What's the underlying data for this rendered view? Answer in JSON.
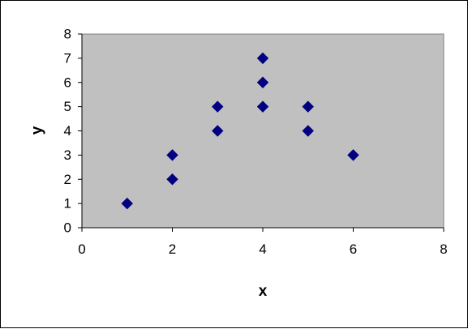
{
  "chart_data": {
    "type": "scatter",
    "title": "",
    "xlabel": "x",
    "ylabel": "y",
    "xlim": [
      0,
      8
    ],
    "ylim": [
      0,
      8
    ],
    "xticks": [
      0,
      2,
      4,
      6,
      8
    ],
    "yticks": [
      0,
      1,
      2,
      3,
      4,
      5,
      6,
      7,
      8
    ],
    "grid": false,
    "legend": "none",
    "series": [
      {
        "marker": "diamond",
        "color": "#000080",
        "points": [
          {
            "x": 1,
            "y": 1
          },
          {
            "x": 2,
            "y": 2
          },
          {
            "x": 2,
            "y": 3
          },
          {
            "x": 3,
            "y": 4
          },
          {
            "x": 3,
            "y": 5
          },
          {
            "x": 4,
            "y": 5
          },
          {
            "x": 4,
            "y": 6
          },
          {
            "x": 4,
            "y": 7
          },
          {
            "x": 5,
            "y": 4
          },
          {
            "x": 5,
            "y": 5
          },
          {
            "x": 6,
            "y": 3
          }
        ]
      }
    ],
    "plot_background": "#c0c0c0"
  }
}
